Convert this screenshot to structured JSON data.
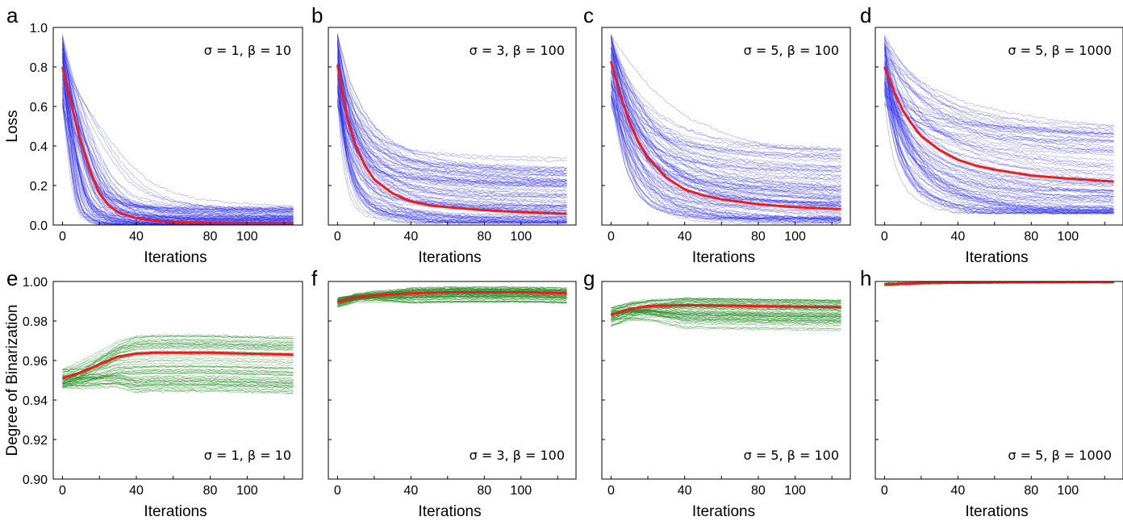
{
  "colors": {
    "loss_trials": "#2a2af5",
    "binarization_trials": "#228b22",
    "mean_curve": "#ee1c1c"
  },
  "chart_data": [
    {
      "panel": "a",
      "type": "line",
      "row": "loss",
      "param_label": "σ = 1, β = 10",
      "xlabel": "Iterations",
      "ylabel": "Loss",
      "xlim": [
        -5,
        130
      ],
      "ylim": [
        0,
        1.0
      ],
      "xticks": [
        0,
        40,
        80,
        100
      ],
      "xtick_labels": [
        "0",
        "40",
        "80",
        "100"
      ],
      "yticks": [
        0,
        0.2,
        0.4,
        0.6,
        0.8,
        1.0
      ],
      "ytick_labels": [
        "0.0",
        "0.2",
        "0.4",
        "0.6",
        "0.8",
        "1.0"
      ],
      "mean": {
        "x": [
          0,
          5,
          10,
          15,
          20,
          25,
          30,
          40,
          50,
          60,
          80,
          100,
          125
        ],
        "y": [
          0.8,
          0.6,
          0.42,
          0.27,
          0.16,
          0.1,
          0.065,
          0.035,
          0.022,
          0.016,
          0.012,
          0.01,
          0.01
        ]
      },
      "trials": {
        "count": 90,
        "initial_range": [
          0.6,
          0.97
        ],
        "final_range": [
          0.0,
          0.09
        ]
      }
    },
    {
      "panel": "b",
      "type": "line",
      "row": "loss",
      "param_label": "σ = 3, β = 100",
      "xlabel": "Iterations",
      "ylabel": "",
      "xlim": [
        -5,
        130
      ],
      "ylim": [
        0,
        1.0
      ],
      "xticks": [
        0,
        40,
        80,
        100
      ],
      "xtick_labels": [
        "0",
        "40",
        "80",
        "100"
      ],
      "yticks": [
        0,
        0.2,
        0.4,
        0.6,
        0.8,
        1.0
      ],
      "ytick_labels": [],
      "mean": {
        "x": [
          0,
          5,
          10,
          15,
          20,
          30,
          40,
          50,
          60,
          80,
          100,
          125
        ],
        "y": [
          0.81,
          0.55,
          0.4,
          0.3,
          0.23,
          0.16,
          0.12,
          0.1,
          0.09,
          0.075,
          0.065,
          0.057
        ]
      },
      "trials": {
        "count": 90,
        "initial_range": [
          0.6,
          0.97
        ],
        "final_range": [
          0.01,
          0.35
        ]
      }
    },
    {
      "panel": "c",
      "type": "line",
      "row": "loss",
      "param_label": "σ = 5, β = 100",
      "xlabel": "Iterations",
      "ylabel": "",
      "xlim": [
        -5,
        130
      ],
      "ylim": [
        0,
        1.0
      ],
      "xticks": [
        0,
        40,
        80,
        100
      ],
      "xtick_labels": [
        "0",
        "40",
        "80",
        "100"
      ],
      "yticks": [
        0,
        0.2,
        0.4,
        0.6,
        0.8,
        1.0
      ],
      "ytick_labels": [],
      "mean": {
        "x": [
          0,
          5,
          10,
          15,
          20,
          30,
          40,
          50,
          60,
          80,
          100,
          125
        ],
        "y": [
          0.83,
          0.66,
          0.52,
          0.42,
          0.34,
          0.24,
          0.18,
          0.15,
          0.13,
          0.105,
          0.09,
          0.08
        ]
      },
      "trials": {
        "count": 90,
        "initial_range": [
          0.6,
          0.97
        ],
        "final_range": [
          0.01,
          0.38
        ]
      }
    },
    {
      "panel": "d",
      "type": "line",
      "row": "loss",
      "param_label": "σ = 5, β = 1000",
      "xlabel": "Iterations",
      "ylabel": "",
      "xlim": [
        -5,
        130
      ],
      "ylim": [
        0,
        1.0
      ],
      "xticks": [
        0,
        40,
        80,
        100
      ],
      "xtick_labels": [
        "0",
        "40",
        "80",
        "100"
      ],
      "yticks": [
        0,
        0.2,
        0.4,
        0.6,
        0.8,
        1.0
      ],
      "ytick_labels": [],
      "mean": {
        "x": [
          0,
          5,
          10,
          15,
          20,
          30,
          40,
          50,
          60,
          80,
          100,
          125
        ],
        "y": [
          0.8,
          0.68,
          0.58,
          0.51,
          0.45,
          0.38,
          0.33,
          0.3,
          0.28,
          0.25,
          0.235,
          0.22
        ]
      },
      "trials": {
        "count": 90,
        "initial_range": [
          0.6,
          0.97
        ],
        "final_range": [
          0.06,
          0.49
        ]
      }
    },
    {
      "panel": "e",
      "type": "line",
      "row": "binarization",
      "param_label": "σ = 1, β = 10",
      "xlabel": "Iterations",
      "ylabel": "Degree of Binarization",
      "xlim": [
        -5,
        130
      ],
      "ylim": [
        0.9,
        1.0
      ],
      "xticks": [
        0,
        40,
        80,
        100
      ],
      "xtick_labels": [
        "0",
        "40",
        "80",
        "100"
      ],
      "yticks": [
        0.9,
        0.92,
        0.94,
        0.96,
        0.98,
        1.0
      ],
      "ytick_labels": [
        "0.90",
        "0.92",
        "0.94",
        "0.96",
        "0.98",
        "1.00"
      ],
      "mean": {
        "x": [
          0,
          10,
          20,
          30,
          40,
          50,
          60,
          80,
          100,
          125
        ],
        "y": [
          0.951,
          0.954,
          0.958,
          0.962,
          0.9635,
          0.964,
          0.964,
          0.964,
          0.9635,
          0.963
        ]
      },
      "trials": {
        "count": 60,
        "initial_range": [
          0.946,
          0.956
        ],
        "final_range": [
          0.943,
          0.973
        ]
      }
    },
    {
      "panel": "f",
      "type": "line",
      "row": "binarization",
      "param_label": "σ = 3, β = 100",
      "xlabel": "Iterations",
      "ylabel": "",
      "xlim": [
        -5,
        130
      ],
      "ylim": [
        0.9,
        1.0
      ],
      "xticks": [
        0,
        40,
        80,
        100
      ],
      "xtick_labels": [
        "0",
        "40",
        "80",
        "100"
      ],
      "yticks": [
        0.9,
        0.92,
        0.94,
        0.96,
        0.98,
        1.0
      ],
      "ytick_labels": [],
      "mean": {
        "x": [
          0,
          10,
          20,
          40,
          60,
          80,
          100,
          125
        ],
        "y": [
          0.9895,
          0.992,
          0.993,
          0.994,
          0.9945,
          0.9945,
          0.9945,
          0.994
        ]
      },
      "trials": {
        "count": 60,
        "initial_range": [
          0.987,
          0.992
        ],
        "final_range": [
          0.989,
          0.997
        ]
      }
    },
    {
      "panel": "g",
      "type": "line",
      "row": "binarization",
      "param_label": "σ = 5, β = 100",
      "xlabel": "Iterations",
      "ylabel": "",
      "xlim": [
        -5,
        130
      ],
      "ylim": [
        0.9,
        1.0
      ],
      "xticks": [
        0,
        40,
        80,
        100
      ],
      "xtick_labels": [
        "0",
        "40",
        "80",
        "100"
      ],
      "yticks": [
        0.9,
        0.92,
        0.94,
        0.96,
        0.98,
        1.0
      ],
      "ytick_labels": [],
      "mean": {
        "x": [
          0,
          10,
          20,
          40,
          60,
          80,
          100,
          125
        ],
        "y": [
          0.983,
          0.986,
          0.9875,
          0.988,
          0.9878,
          0.9875,
          0.9873,
          0.987
        ]
      },
      "trials": {
        "count": 60,
        "initial_range": [
          0.977,
          0.987
        ],
        "final_range": [
          0.975,
          0.991
        ]
      }
    },
    {
      "panel": "h",
      "type": "line",
      "row": "binarization",
      "param_label": "σ = 5, β = 1000",
      "xlabel": "Iterations",
      "ylabel": "",
      "xlim": [
        -5,
        130
      ],
      "ylim": [
        0.9,
        1.0
      ],
      "xticks": [
        0,
        40,
        80,
        100
      ],
      "xtick_labels": [
        "0",
        "40",
        "80",
        "100"
      ],
      "yticks": [
        0.9,
        0.92,
        0.94,
        0.96,
        0.98,
        1.0
      ],
      "ytick_labels": [],
      "mean": {
        "x": [
          0,
          20,
          40,
          60,
          80,
          100,
          125
        ],
        "y": [
          0.9985,
          0.9992,
          0.9995,
          0.9996,
          0.9997,
          0.9998,
          0.9998
        ]
      },
      "trials": {
        "count": 40,
        "initial_range": [
          0.9978,
          0.9992
        ],
        "final_range": [
          0.9994,
          0.9999
        ]
      }
    }
  ]
}
